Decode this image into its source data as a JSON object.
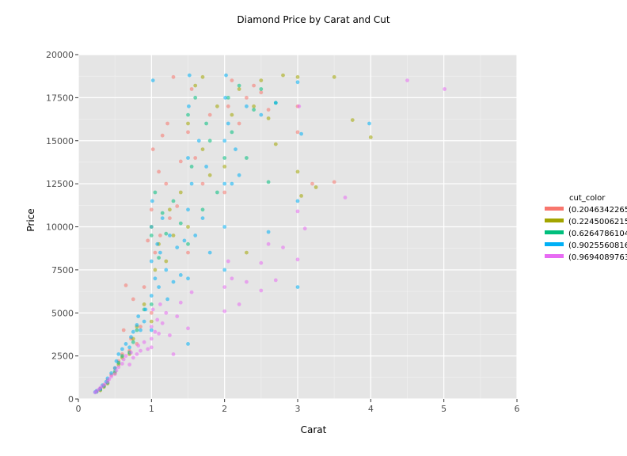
{
  "chart_data": {
    "type": "scatter",
    "title": "Diamond Price by Carat and Cut",
    "xlabel": "Carat",
    "ylabel": "Price",
    "xlim": [
      0,
      6
    ],
    "ylim": [
      0,
      20000
    ],
    "x_ticks": [
      "0",
      "1",
      "2",
      "3",
      "4",
      "5",
      "6"
    ],
    "y_ticks": [
      "0",
      "2500",
      "5000",
      "7500",
      "10000",
      "12500",
      "15000",
      "17500",
      "20000"
    ],
    "grid": true,
    "legend": {
      "title": "cut_color",
      "placement": "right",
      "entries": [
        {
          "label": "(0.2046342265",
          "color": "#F8766D"
        },
        {
          "label": "(0.2245006215",
          "color": "#A3A500"
        },
        {
          "label": "(0.6264786104",
          "color": "#00BF7D"
        },
        {
          "label": "(0.9025560816",
          "color": "#00B0F6"
        },
        {
          "label": "(0.9694089763",
          "color": "#E76BF3"
        }
      ]
    },
    "series": [
      {
        "color": "#F8766D",
        "points": [
          [
            0.25,
            450
          ],
          [
            0.3,
            600
          ],
          [
            0.35,
            800
          ],
          [
            0.4,
            1100
          ],
          [
            0.45,
            1400
          ],
          [
            0.5,
            1800
          ],
          [
            0.55,
            2200
          ],
          [
            0.6,
            2600
          ],
          [
            0.62,
            4000
          ],
          [
            0.65,
            6600
          ],
          [
            0.7,
            2800
          ],
          [
            0.72,
            3500
          ],
          [
            0.75,
            5800
          ],
          [
            0.8,
            3200
          ],
          [
            0.85,
            4200
          ],
          [
            0.9,
            6500
          ],
          [
            0.95,
            9200
          ],
          [
            1.0,
            5000
          ],
          [
            1.0,
            11000
          ],
          [
            1.02,
            14500
          ],
          [
            1.05,
            8500
          ],
          [
            1.1,
            13200
          ],
          [
            1.12,
            9500
          ],
          [
            1.15,
            15300
          ],
          [
            1.2,
            12500
          ],
          [
            1.22,
            16000
          ],
          [
            1.3,
            18700
          ],
          [
            1.25,
            10500
          ],
          [
            1.35,
            11200
          ],
          [
            1.4,
            13800
          ],
          [
            1.5,
            8500
          ],
          [
            1.5,
            15500
          ],
          [
            1.55,
            18000
          ],
          [
            1.6,
            14000
          ],
          [
            1.7,
            12500
          ],
          [
            1.8,
            16500
          ],
          [
            2.0,
            12000
          ],
          [
            2.05,
            17000
          ],
          [
            2.1,
            18500
          ],
          [
            2.2,
            16000
          ],
          [
            2.3,
            17500
          ],
          [
            2.4,
            18200
          ],
          [
            2.5,
            17800
          ],
          [
            2.6,
            16800
          ],
          [
            3.0,
            17000
          ],
          [
            3.0,
            15500
          ],
          [
            3.2,
            12500
          ],
          [
            3.5,
            12600
          ]
        ]
      },
      {
        "color": "#A3A500",
        "points": [
          [
            0.3,
            500
          ],
          [
            0.35,
            700
          ],
          [
            0.4,
            900
          ],
          [
            0.5,
            1500
          ],
          [
            0.55,
            2000
          ],
          [
            0.6,
            2400
          ],
          [
            0.7,
            2600
          ],
          [
            0.75,
            3500
          ],
          [
            0.8,
            4200
          ],
          [
            0.9,
            5500
          ],
          [
            1.0,
            4500
          ],
          [
            1.0,
            10000
          ],
          [
            1.05,
            7500
          ],
          [
            1.1,
            9000
          ],
          [
            1.2,
            8000
          ],
          [
            1.25,
            11000
          ],
          [
            1.3,
            9500
          ],
          [
            1.4,
            12000
          ],
          [
            1.5,
            10000
          ],
          [
            1.5,
            16000
          ],
          [
            1.6,
            18200
          ],
          [
            1.7,
            14500
          ],
          [
            1.7,
            18700
          ],
          [
            1.8,
            13000
          ],
          [
            1.9,
            17000
          ],
          [
            2.0,
            13500
          ],
          [
            2.1,
            16500
          ],
          [
            2.2,
            18000
          ],
          [
            2.3,
            8500
          ],
          [
            2.4,
            17000
          ],
          [
            2.5,
            18500
          ],
          [
            2.6,
            16300
          ],
          [
            2.7,
            14800
          ],
          [
            2.8,
            18800
          ],
          [
            3.0,
            18700
          ],
          [
            3.0,
            13200
          ],
          [
            3.05,
            11800
          ],
          [
            3.25,
            12300
          ],
          [
            3.5,
            18700
          ],
          [
            3.75,
            16200
          ],
          [
            4.0,
            15200
          ]
        ]
      },
      {
        "color": "#00BF7D",
        "points": [
          [
            0.25,
            420
          ],
          [
            0.3,
            550
          ],
          [
            0.35,
            750
          ],
          [
            0.4,
            950
          ],
          [
            0.5,
            1600
          ],
          [
            0.55,
            2100
          ],
          [
            0.6,
            2500
          ],
          [
            0.7,
            2700
          ],
          [
            0.75,
            3300
          ],
          [
            0.8,
            4000
          ],
          [
            0.9,
            5200
          ],
          [
            1.0,
            5500
          ],
          [
            1.0,
            9500
          ],
          [
            1.05,
            12000
          ],
          [
            1.1,
            8200
          ],
          [
            1.15,
            10800
          ],
          [
            1.2,
            9600
          ],
          [
            1.3,
            11500
          ],
          [
            1.4,
            10200
          ],
          [
            1.5,
            9000
          ],
          [
            1.5,
            16500
          ],
          [
            1.55,
            13500
          ],
          [
            1.6,
            17500
          ],
          [
            1.7,
            11000
          ],
          [
            1.75,
            16000
          ],
          [
            1.8,
            15000
          ],
          [
            1.9,
            12000
          ],
          [
            2.0,
            14000
          ],
          [
            2.05,
            17500
          ],
          [
            2.1,
            15500
          ],
          [
            2.2,
            18200
          ],
          [
            2.3,
            14000
          ],
          [
            2.4,
            16800
          ],
          [
            2.5,
            18000
          ],
          [
            2.6,
            12600
          ],
          [
            2.7,
            17200
          ]
        ]
      },
      {
        "color": "#00B0F6",
        "points": [
          [
            0.23,
            400
          ],
          [
            0.25,
            480
          ],
          [
            0.3,
            600
          ],
          [
            0.33,
            800
          ],
          [
            0.38,
            1000
          ],
          [
            0.4,
            1200
          ],
          [
            0.45,
            1500
          ],
          [
            0.5,
            1800
          ],
          [
            0.52,
            2200
          ],
          [
            0.55,
            2600
          ],
          [
            0.6,
            2900
          ],
          [
            0.65,
            3200
          ],
          [
            0.7,
            3000
          ],
          [
            0.72,
            3600
          ],
          [
            0.75,
            3900
          ],
          [
            0.8,
            4300
          ],
          [
            0.82,
            4800
          ],
          [
            0.85,
            4000
          ],
          [
            0.9,
            4500
          ],
          [
            0.92,
            5200
          ],
          [
            1.0,
            4000
          ],
          [
            1.0,
            6000
          ],
          [
            1.0,
            8000
          ],
          [
            1.0,
            10000
          ],
          [
            1.01,
            11500
          ],
          [
            1.02,
            18500
          ],
          [
            1.05,
            7000
          ],
          [
            1.08,
            9000
          ],
          [
            1.1,
            6500
          ],
          [
            1.12,
            8500
          ],
          [
            1.15,
            10500
          ],
          [
            1.2,
            7500
          ],
          [
            1.22,
            5800
          ],
          [
            1.25,
            9500
          ],
          [
            1.3,
            6800
          ],
          [
            1.35,
            8800
          ],
          [
            1.4,
            7200
          ],
          [
            1.45,
            9200
          ],
          [
            1.5,
            3200
          ],
          [
            1.5,
            7000
          ],
          [
            1.5,
            11000
          ],
          [
            1.5,
            14000
          ],
          [
            1.51,
            17000
          ],
          [
            1.52,
            18800
          ],
          [
            1.55,
            12500
          ],
          [
            1.6,
            9500
          ],
          [
            1.65,
            15000
          ],
          [
            1.7,
            10500
          ],
          [
            1.75,
            13500
          ],
          [
            1.8,
            8500
          ],
          [
            2.0,
            7500
          ],
          [
            2.0,
            10000
          ],
          [
            2.0,
            12500
          ],
          [
            2.0,
            15000
          ],
          [
            2.01,
            17500
          ],
          [
            2.02,
            18800
          ],
          [
            2.05,
            16000
          ],
          [
            2.1,
            12500
          ],
          [
            2.15,
            14500
          ],
          [
            2.2,
            13000
          ],
          [
            2.3,
            17000
          ],
          [
            2.5,
            16500
          ],
          [
            2.6,
            9700
          ],
          [
            2.7,
            17200
          ],
          [
            3.0,
            6500
          ],
          [
            3.0,
            11500
          ],
          [
            3.05,
            15400
          ],
          [
            3.0,
            18400
          ],
          [
            3.98,
            16000
          ]
        ]
      },
      {
        "color": "#E76BF3",
        "points": [
          [
            0.23,
            380
          ],
          [
            0.25,
            450
          ],
          [
            0.28,
            550
          ],
          [
            0.3,
            650
          ],
          [
            0.33,
            750
          ],
          [
            0.36,
            850
          ],
          [
            0.4,
            1000
          ],
          [
            0.42,
            1150
          ],
          [
            0.45,
            1300
          ],
          [
            0.5,
            1450
          ],
          [
            0.52,
            1650
          ],
          [
            0.55,
            1850
          ],
          [
            0.6,
            2050
          ],
          [
            0.62,
            2300
          ],
          [
            0.65,
            2500
          ],
          [
            0.7,
            2000
          ],
          [
            0.72,
            2700
          ],
          [
            0.75,
            2400
          ],
          [
            0.8,
            2600
          ],
          [
            0.82,
            3100
          ],
          [
            0.85,
            2800
          ],
          [
            0.9,
            3300
          ],
          [
            0.95,
            2900
          ],
          [
            1.0,
            3000
          ],
          [
            1.0,
            3500
          ],
          [
            1.0,
            4200
          ],
          [
            1.02,
            5200
          ],
          [
            1.05,
            3900
          ],
          [
            1.08,
            4600
          ],
          [
            1.1,
            3800
          ],
          [
            1.12,
            5500
          ],
          [
            1.15,
            4400
          ],
          [
            1.2,
            5000
          ],
          [
            1.25,
            3700
          ],
          [
            1.3,
            2600
          ],
          [
            1.35,
            4800
          ],
          [
            1.4,
            5600
          ],
          [
            1.5,
            4100
          ],
          [
            1.55,
            6200
          ],
          [
            2.0,
            5100
          ],
          [
            2.0,
            6500
          ],
          [
            2.05,
            8000
          ],
          [
            2.1,
            7000
          ],
          [
            2.2,
            5500
          ],
          [
            2.3,
            6800
          ],
          [
            2.5,
            6300
          ],
          [
            2.7,
            6900
          ],
          [
            2.5,
            7900
          ],
          [
            2.6,
            9000
          ],
          [
            2.8,
            8800
          ],
          [
            3.0,
            8100
          ],
          [
            3.0,
            10900
          ],
          [
            3.1,
            9900
          ],
          [
            3.02,
            17000
          ],
          [
            3.65,
            11700
          ],
          [
            4.5,
            18500
          ],
          [
            5.01,
            18000
          ]
        ]
      }
    ]
  }
}
